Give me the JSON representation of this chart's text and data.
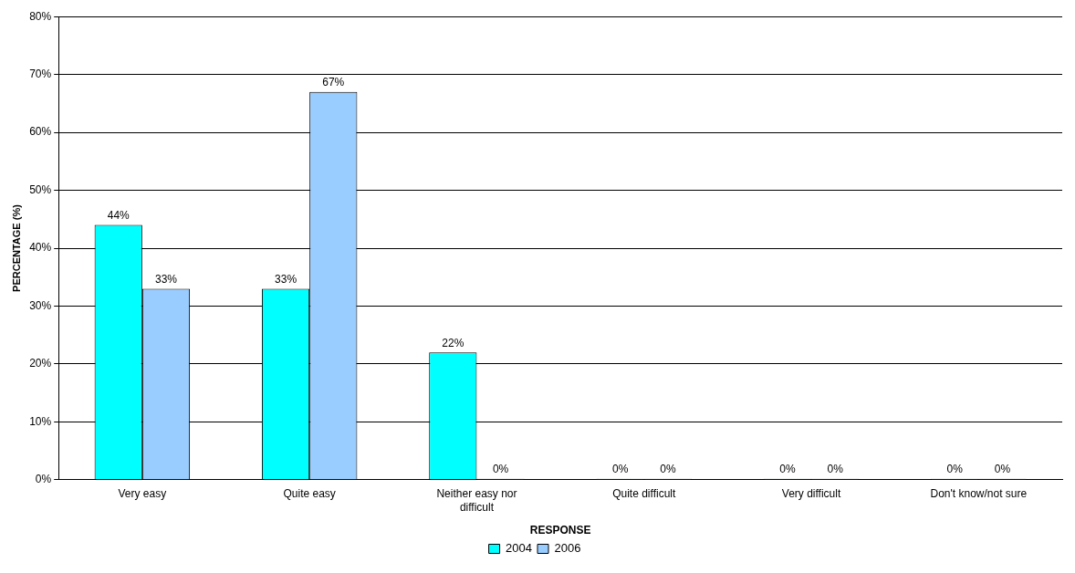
{
  "chart_data": {
    "type": "bar",
    "xlabel": "RESPONSE",
    "ylabel": "PERCENTAGE (%)",
    "categories": [
      "Very easy",
      "Quite easy",
      "Neither easy nor difficult",
      "Quite difficult",
      "Very difficult",
      "Don't know/not sure"
    ],
    "series": [
      {
        "name": "2004",
        "color": "#00ffff",
        "values": [
          44,
          33,
          22,
          0,
          0,
          0
        ],
        "value_labels": [
          "44%",
          "33%",
          "22%",
          "0%",
          "0%",
          "0%"
        ]
      },
      {
        "name": "2006",
        "color": "#99ccff",
        "values": [
          33,
          67,
          0,
          0,
          0,
          0
        ],
        "value_labels": [
          "33%",
          "67%",
          "0%",
          "0%",
          "0%",
          "0%"
        ]
      }
    ],
    "ylim": [
      0,
      80
    ],
    "yticks": [
      {
        "value": 0,
        "label": "0%"
      },
      {
        "value": 10,
        "label": "10%"
      },
      {
        "value": 20,
        "label": "20%"
      },
      {
        "value": 30,
        "label": "30%"
      },
      {
        "value": 40,
        "label": "40%"
      },
      {
        "value": 50,
        "label": "50%"
      },
      {
        "value": 60,
        "label": "60%"
      },
      {
        "value": 70,
        "label": "70%"
      },
      {
        "value": 80,
        "label": "80%"
      }
    ],
    "grid": "y",
    "legend": "bottom"
  }
}
